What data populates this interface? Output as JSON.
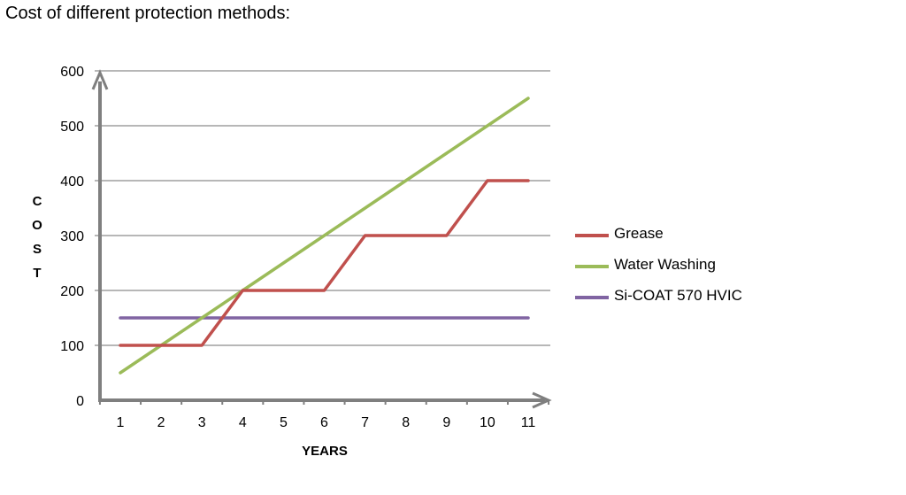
{
  "title": "Cost of different protection methods:",
  "chart_data": {
    "type": "line",
    "x": [
      1,
      2,
      3,
      4,
      5,
      6,
      7,
      8,
      9,
      10,
      11
    ],
    "xlabel": "YEARS",
    "ylabel": "COST",
    "ylim": [
      0,
      600
    ],
    "yticks": [
      0,
      100,
      200,
      300,
      400,
      500,
      600
    ],
    "grid": true,
    "legend": "right",
    "series": [
      {
        "name": "Grease",
        "color": "#c0504d",
        "values": [
          100,
          100,
          100,
          200,
          200,
          200,
          300,
          300,
          300,
          400,
          400
        ]
      },
      {
        "name": "Water Washing",
        "color": "#9bbb59",
        "values": [
          50,
          100,
          150,
          200,
          250,
          300,
          350,
          400,
          450,
          500,
          550
        ]
      },
      {
        "name": "Si-COAT 570 HVIC",
        "color": "#8064a2",
        "values": [
          150,
          150,
          150,
          150,
          150,
          150,
          150,
          150,
          150,
          150,
          150
        ]
      }
    ]
  }
}
